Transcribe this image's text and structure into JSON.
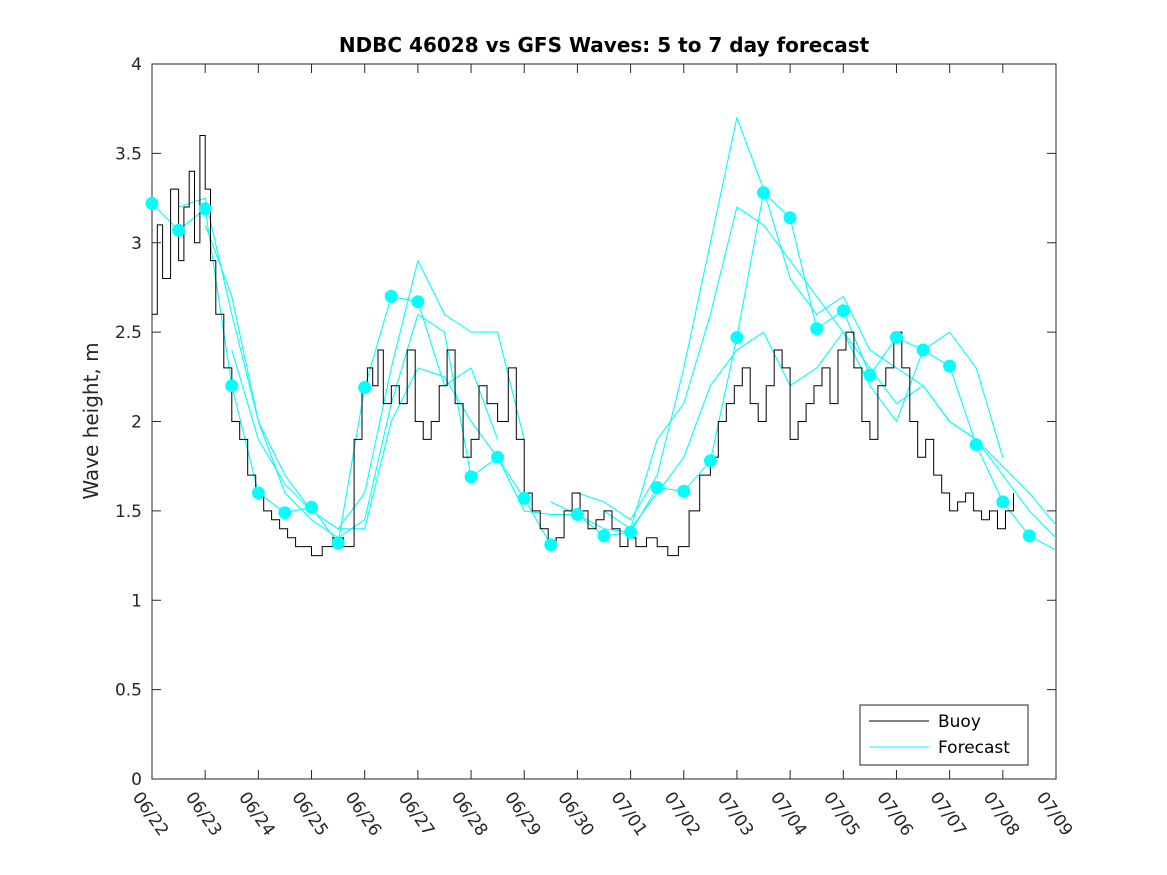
{
  "chart_data": {
    "type": "line",
    "title": "NDBC 46028 vs GFS Waves: 5 to 7 day forecast",
    "xlabel": "",
    "ylabel": "Wave height, m",
    "ylim": [
      0,
      4
    ],
    "yticks": [
      "0",
      "0.5",
      "1",
      "1.5",
      "2",
      "2.5",
      "3",
      "3.5",
      "4"
    ],
    "xlim": [
      "06/22",
      "07/09"
    ],
    "xticks": [
      "06/22",
      "06/23",
      "06/24",
      "06/25",
      "06/26",
      "06/27",
      "06/28",
      "06/29",
      "06/30",
      "07/01",
      "07/02",
      "07/03",
      "07/04",
      "07/05",
      "07/06",
      "07/07",
      "07/08",
      "07/09"
    ],
    "grid": false,
    "legend": {
      "placement": "bottom-right",
      "entries": [
        "Buoy",
        "Forecast"
      ]
    },
    "colors": {
      "buoy": "#000000",
      "forecast": "#00FFFF",
      "axis": "#262626"
    },
    "series": [
      {
        "name": "Buoy",
        "x": [
          0.0,
          0.1,
          0.2,
          0.35,
          0.5,
          0.6,
          0.7,
          0.8,
          0.9,
          1.0,
          1.1,
          1.2,
          1.35,
          1.5,
          1.65,
          1.8,
          1.95,
          2.1,
          2.25,
          2.4,
          2.55,
          2.7,
          2.85,
          3.0,
          3.2,
          3.4,
          3.6,
          3.8,
          3.95,
          4.05,
          4.15,
          4.25,
          4.35,
          4.5,
          4.65,
          4.8,
          4.95,
          5.1,
          5.25,
          5.4,
          5.55,
          5.7,
          5.85,
          6.0,
          6.15,
          6.3,
          6.5,
          6.7,
          6.85,
          7.0,
          7.15,
          7.3,
          7.45,
          7.6,
          7.75,
          7.9,
          8.05,
          8.2,
          8.35,
          8.5,
          8.65,
          8.8,
          8.95,
          9.1,
          9.3,
          9.5,
          9.7,
          9.9,
          10.1,
          10.3,
          10.5,
          10.65,
          10.8,
          10.95,
          11.1,
          11.25,
          11.4,
          11.55,
          11.7,
          11.85,
          12.0,
          12.15,
          12.3,
          12.45,
          12.6,
          12.75,
          12.9,
          13.05,
          13.2,
          13.35,
          13.5,
          13.65,
          13.8,
          13.95,
          14.1,
          14.25,
          14.4,
          14.55,
          14.7,
          14.85,
          15.0,
          15.15,
          15.3,
          15.45,
          15.6,
          15.75,
          15.9,
          16.05,
          16.2
        ],
        "y": [
          2.6,
          3.1,
          2.8,
          3.3,
          2.9,
          3.2,
          3.4,
          3.0,
          3.6,
          3.3,
          2.9,
          2.6,
          2.3,
          2.0,
          1.9,
          1.7,
          1.6,
          1.5,
          1.45,
          1.4,
          1.35,
          1.3,
          1.3,
          1.25,
          1.3,
          1.35,
          1.3,
          1.9,
          2.2,
          2.3,
          2.2,
          2.4,
          2.1,
          2.2,
          2.1,
          2.4,
          2.0,
          1.9,
          2.0,
          2.2,
          2.4,
          2.1,
          1.8,
          1.9,
          2.2,
          2.1,
          2.0,
          2.3,
          1.9,
          1.6,
          1.5,
          1.4,
          1.3,
          1.35,
          1.5,
          1.6,
          1.5,
          1.4,
          1.45,
          1.5,
          1.4,
          1.3,
          1.35,
          1.3,
          1.35,
          1.3,
          1.25,
          1.3,
          1.5,
          1.7,
          1.8,
          2.0,
          2.1,
          2.2,
          2.3,
          2.1,
          2.0,
          2.2,
          2.4,
          2.3,
          1.9,
          2.0,
          2.1,
          2.2,
          2.3,
          2.1,
          2.4,
          2.5,
          2.3,
          2.0,
          1.9,
          2.2,
          2.3,
          2.5,
          2.3,
          2.0,
          1.8,
          1.9,
          1.7,
          1.6,
          1.5,
          1.55,
          1.6,
          1.5,
          1.45,
          1.5,
          1.4,
          1.5,
          1.6
        ]
      },
      {
        "name": "Forecast",
        "runs": [
          {
            "x": [
              0,
              0.5,
              1.0,
              1.5,
              2.0,
              2.5,
              3.0,
              3.5,
              4.0,
              4.5,
              5.0,
              5.5,
              6.0,
              6.5
            ],
            "y": [
              3.22,
              3.07,
              3.19,
              2.2,
              1.6,
              1.49,
              1.52,
              1.32,
              2.19,
              2.7,
              2.67,
              2.2,
              2.3,
              1.9
            ]
          },
          {
            "x": [
              0.5,
              1.0,
              1.5,
              2.0,
              2.5,
              3.0,
              3.5,
              4.0,
              4.5,
              5.0,
              5.5,
              6.0,
              6.5,
              7.0
            ],
            "y": [
              3.2,
              3.25,
              2.6,
              2.0,
              1.7,
              1.5,
              1.4,
              1.6,
              2.3,
              2.9,
              2.6,
              2.5,
              2.5,
              1.9
            ]
          },
          {
            "x": [
              1.0,
              1.5,
              2.0,
              2.5,
              3.0,
              3.5,
              4.0,
              4.5,
              5.0,
              5.5,
              6.0,
              6.5,
              7.0,
              7.5
            ],
            "y": [
              3.1,
              2.7,
              2.0,
              1.6,
              1.45,
              1.35,
              1.45,
              2.1,
              2.6,
              2.5,
              1.69,
              1.8,
              1.57,
              1.31
            ]
          },
          {
            "x": [
              1.5,
              2.0,
              2.5,
              3.0,
              3.5,
              4.0,
              4.5,
              5.0,
              5.5,
              6.0,
              6.5,
              7.0,
              7.5,
              8.0,
              8.5,
              9.0
            ],
            "y": [
              2.4,
              1.9,
              1.65,
              1.5,
              1.4,
              1.4,
              2.0,
              2.3,
              2.25,
              2.0,
              1.8,
              1.5,
              1.48,
              1.48,
              1.36,
              1.38
            ]
          },
          {
            "x": [
              7.5,
              8.0,
              8.5,
              9.0,
              9.5,
              10.0,
              10.5,
              11.0,
              11.5,
              12.0,
              12.5,
              13.0,
              13.5,
              14.0,
              14.5,
              15.0,
              15.5,
              16.0,
              16.5,
              17.0
            ],
            "y": [
              1.55,
              1.48,
              1.4,
              1.38,
              1.63,
              1.61,
              1.78,
              2.47,
              3.28,
              3.14,
              2.52,
              2.62,
              2.26,
              2.47,
              2.4,
              2.31,
              1.87,
              1.55,
              1.36,
              1.28
            ]
          },
          {
            "x": [
              8.0,
              8.5,
              9.0,
              9.5,
              10.0,
              10.5,
              11.0,
              11.5,
              12.0,
              12.5,
              13.0,
              13.5,
              14.0,
              14.5,
              15.0,
              15.5,
              16.0,
              16.5,
              17.0
            ],
            "y": [
              1.6,
              1.55,
              1.45,
              1.7,
              2.3,
              3.0,
              3.7,
              3.3,
              2.8,
              2.6,
              2.7,
              2.4,
              2.3,
              2.2,
              2.0,
              1.9,
              1.7,
              1.5,
              1.35
            ]
          },
          {
            "x": [
              8.5,
              9.0,
              9.5,
              10.0,
              10.5,
              11.0,
              11.5,
              12.0,
              12.5,
              13.0,
              13.5,
              14.0,
              14.5,
              15.0,
              15.5,
              16.0,
              16.5,
              17.0
            ],
            "y": [
              1.5,
              1.4,
              1.9,
              2.1,
              2.6,
              3.2,
              3.1,
              2.9,
              2.7,
              2.5,
              2.3,
              2.1,
              2.2,
              2.0,
              1.9,
              1.75,
              1.6,
              1.42
            ]
          },
          {
            "x": [
              9.0,
              9.5,
              10.0,
              10.5,
              11.0,
              11.5,
              12.0,
              12.5,
              13.0,
              13.5,
              14.0,
              14.5,
              15.0,
              15.5,
              16.0
            ],
            "y": [
              1.4,
              1.6,
              1.8,
              2.2,
              2.4,
              2.5,
              2.2,
              2.3,
              2.5,
              2.2,
              2.0,
              2.4,
              2.5,
              2.3,
              1.8
            ]
          }
        ],
        "markers_x": [
          0,
          0.5,
          1.0,
          1.5,
          2.0,
          2.5,
          3.0,
          3.5,
          4.0,
          4.5,
          5.0,
          6.0,
          6.5,
          7.0,
          7.5,
          8.0,
          8.5,
          9.0,
          9.5,
          10.0,
          10.5,
          11.0,
          11.5,
          12.0,
          12.5,
          13.0,
          13.5,
          14.0,
          14.5,
          15.0,
          15.5,
          16.0,
          16.5
        ],
        "markers_y": [
          3.22,
          3.07,
          3.19,
          2.2,
          1.6,
          1.49,
          1.52,
          1.32,
          2.19,
          2.7,
          2.67,
          1.69,
          1.8,
          1.57,
          1.31,
          1.48,
          1.36,
          1.38,
          1.63,
          1.61,
          1.78,
          2.47,
          3.28,
          3.14,
          2.52,
          2.62,
          2.26,
          2.47,
          2.4,
          2.31,
          1.87,
          1.55,
          1.36
        ]
      }
    ]
  }
}
